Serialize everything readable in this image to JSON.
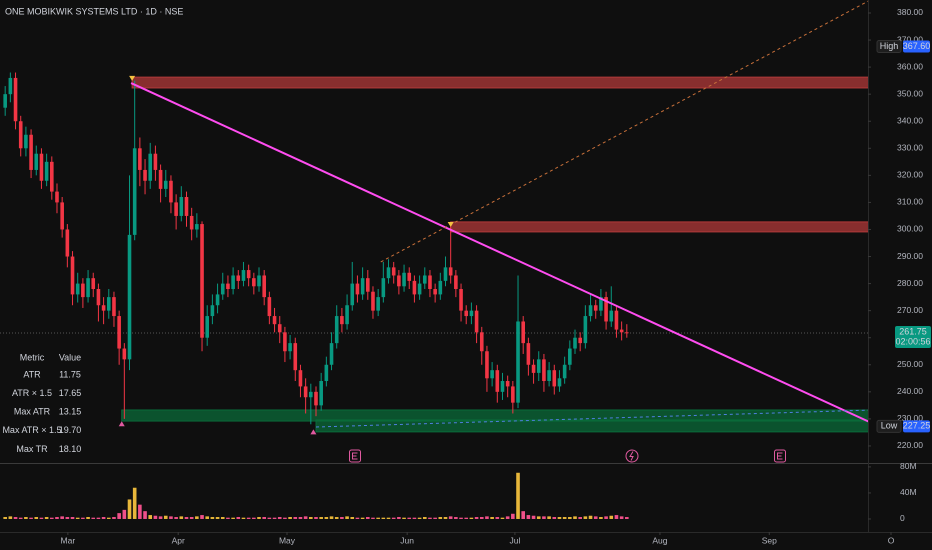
{
  "chart_data": {
    "type": "candlestick",
    "title": "ONE MOBIKWIK SYSTEMS LTD · 1D · NSE",
    "up_color": "#089981",
    "down_color": "#f23645",
    "volume_up_color": "#e8b73a",
    "volume_down_color": "#f0508a",
    "open": [
      345,
      350,
      356,
      340,
      330,
      335,
      322,
      328,
      318,
      325,
      314,
      310,
      300,
      290,
      276,
      280,
      275,
      282,
      278,
      272,
      270,
      275,
      268,
      256,
      252,
      298,
      330,
      322,
      318,
      328,
      322,
      315,
      318,
      310,
      305,
      312,
      305,
      300,
      302,
      260,
      268,
      272,
      276,
      280,
      278,
      283,
      281,
      285,
      282,
      279,
      283,
      275,
      268,
      265,
      262,
      255,
      258,
      248,
      242,
      238,
      240,
      235,
      244,
      250,
      258,
      268,
      265,
      272,
      280,
      276,
      282,
      277,
      270,
      275,
      282,
      286,
      283,
      279,
      284,
      281,
      276,
      280,
      283,
      278,
      276,
      281,
      286,
      283,
      278,
      270,
      268,
      270,
      262,
      255,
      245,
      248,
      240,
      244,
      242,
      236,
      266,
      258,
      250,
      247,
      252,
      244,
      248,
      242,
      245,
      250,
      256,
      260,
      258,
      268,
      272,
      270,
      275,
      266,
      270,
      263,
      262
    ],
    "high": [
      353,
      358,
      358,
      342,
      338,
      337,
      331,
      330,
      328,
      327,
      317,
      312,
      302,
      292,
      284,
      282,
      285,
      284,
      280,
      275,
      278,
      277,
      270,
      258,
      320,
      355,
      334,
      326,
      332,
      331,
      324,
      322,
      320,
      313,
      316,
      314,
      308,
      306,
      303,
      272,
      276,
      280,
      284,
      283,
      286,
      285,
      288,
      287,
      284,
      286,
      285,
      277,
      271,
      268,
      264,
      261,
      260,
      250,
      245,
      243,
      242,
      247,
      253,
      262,
      272,
      271,
      276,
      288,
      283,
      286,
      285,
      279,
      278,
      288,
      289,
      288,
      285,
      287,
      286,
      283,
      283,
      286,
      285,
      280,
      284,
      290,
      301,
      285,
      280,
      272,
      273,
      272,
      264,
      257,
      251,
      250,
      247,
      246,
      244,
      283,
      268,
      260,
      252,
      255,
      254,
      251,
      250,
      248,
      253,
      259,
      263,
      262,
      272,
      276,
      274,
      278,
      277,
      279,
      272,
      266,
      265
    ],
    "low": [
      342,
      347,
      337,
      327,
      327,
      319,
      320,
      315,
      316,
      311,
      306,
      297,
      286,
      272,
      273,
      271,
      273,
      275,
      266,
      265,
      267,
      264,
      250,
      230,
      248,
      296,
      316,
      313,
      315,
      318,
      310,
      312,
      306,
      300,
      303,
      301,
      296,
      297,
      255,
      257,
      265,
      269,
      274,
      275,
      276,
      278,
      279,
      279,
      276,
      277,
      272,
      265,
      262,
      258,
      251,
      252,
      244,
      238,
      232,
      228,
      231,
      233,
      242,
      248,
      256,
      262,
      263,
      270,
      273,
      274,
      274,
      267,
      268,
      273,
      280,
      280,
      276,
      277,
      278,
      273,
      274,
      278,
      275,
      273,
      274,
      279,
      280,
      275,
      266,
      265,
      265,
      258,
      250,
      240,
      242,
      236,
      237,
      238,
      232,
      234,
      254,
      246,
      243,
      244,
      240,
      242,
      239,
      240,
      243,
      248,
      254,
      255,
      256,
      266,
      267,
      268,
      263,
      264,
      260,
      259,
      260
    ],
    "close": [
      350,
      356,
      340,
      330,
      335,
      322,
      328,
      318,
      325,
      314,
      310,
      300,
      290,
      276,
      280,
      275,
      282,
      278,
      272,
      270,
      275,
      268,
      256,
      252,
      298,
      330,
      322,
      318,
      328,
      322,
      315,
      318,
      310,
      305,
      312,
      305,
      300,
      302,
      260,
      268,
      272,
      276,
      280,
      278,
      283,
      281,
      285,
      282,
      279,
      283,
      275,
      268,
      265,
      262,
      255,
      258,
      248,
      242,
      238,
      240,
      235,
      244,
      250,
      258,
      268,
      265,
      272,
      280,
      276,
      282,
      277,
      270,
      275,
      282,
      286,
      283,
      279,
      284,
      281,
      276,
      280,
      283,
      278,
      276,
      281,
      286,
      283,
      278,
      270,
      268,
      270,
      262,
      255,
      245,
      248,
      240,
      244,
      242,
      236,
      266,
      258,
      250,
      247,
      252,
      244,
      248,
      242,
      245,
      250,
      256,
      260,
      258,
      268,
      272,
      270,
      275,
      266,
      270,
      263,
      262,
      261.75
    ],
    "volume": [
      3,
      4,
      3,
      2,
      3,
      2,
      3,
      2,
      3,
      2,
      3,
      4,
      3,
      3,
      2,
      2,
      3,
      2,
      2,
      3,
      2,
      3,
      9,
      14,
      30,
      48,
      22,
      12,
      6,
      5,
      4,
      5,
      4,
      3,
      4,
      3,
      3,
      4,
      6,
      4,
      3,
      3,
      3,
      2,
      2,
      3,
      2,
      2,
      2,
      3,
      3,
      2,
      2,
      3,
      2,
      3,
      3,
      3,
      4,
      3,
      3,
      3,
      3,
      4,
      3,
      3,
      4,
      3,
      2,
      2,
      3,
      2,
      2,
      2,
      2,
      2,
      3,
      2,
      2,
      2,
      2,
      3,
      2,
      2,
      3,
      3,
      4,
      3,
      2,
      2,
      2,
      3,
      3,
      4,
      3,
      3,
      2,
      4,
      8,
      71,
      12,
      6,
      5,
      4,
      4,
      4,
      3,
      3,
      3,
      3,
      4,
      3,
      4,
      5,
      4,
      3,
      4,
      5,
      6,
      4,
      3
    ],
    "xlim": [
      -1,
      171
    ],
    "xticks": [
      {
        "value": 12.1,
        "label": "Mar"
      },
      {
        "value": 33.4,
        "label": "Apr"
      },
      {
        "value": 54.4,
        "label": "May"
      },
      {
        "value": 77.6,
        "label": "Jun"
      },
      {
        "value": 98.4,
        "label": "Jul"
      },
      {
        "value": 126.4,
        "label": "Aug"
      },
      {
        "value": 147.5,
        "label": "Sep"
      },
      {
        "value": 171,
        "label": "O"
      }
    ],
    "ylim": [
      213.7,
      384.8
    ],
    "yticks": [
      {
        "value": 220,
        "label": "220.00"
      },
      {
        "value": 230,
        "label": "230.00"
      },
      {
        "value": 240,
        "label": "240.00"
      },
      {
        "value": 250,
        "label": "250.00"
      },
      {
        "value": 260,
        "label": "260.00"
      },
      {
        "value": 270,
        "label": "270.00"
      },
      {
        "value": 280,
        "label": "280.00"
      },
      {
        "value": 290,
        "label": "290.00"
      },
      {
        "value": 300,
        "label": "300.00"
      },
      {
        "value": 310,
        "label": "310.00"
      },
      {
        "value": 320,
        "label": "320.00"
      },
      {
        "value": 330,
        "label": "330.00"
      },
      {
        "value": 340,
        "label": "340.00"
      },
      {
        "value": 350,
        "label": "350.00"
      },
      {
        "value": 360,
        "label": "360.00"
      },
      {
        "value": 370,
        "label": "370.00"
      },
      {
        "value": 380,
        "label": "380.00"
      }
    ],
    "vlim": [
      -20,
      86
    ],
    "vticks": [
      {
        "value": 80,
        "label": "80M"
      },
      {
        "value": 40,
        "label": "40M"
      },
      0
    ],
    "grid": false,
    "high_marker": {
      "name": "High",
      "value": 367.6,
      "label": "367.60",
      "color": "#2962ff"
    },
    "low_marker": {
      "name": "Low",
      "value": 227.25,
      "label": "227.25",
      "color": "#2962ff"
    },
    "last_price": {
      "value": 261.75,
      "label": "261.75",
      "countdown": "02:00:56",
      "color": "#089981"
    },
    "zones": [
      {
        "color": "#b23a3a",
        "x": [
          24.5,
          171
        ],
        "y": [
          352.3,
          356.3
        ]
      },
      {
        "color": "#b23a3a",
        "x": [
          86,
          171
        ],
        "y": [
          299.1,
          302.8
        ]
      },
      {
        "color": "#0b6b3a",
        "x": [
          22.5,
          171
        ],
        "y": [
          229.2,
          233.3
        ]
      },
      {
        "color": "#0b6b3a",
        "x": [
          60,
          171
        ],
        "y": [
          225.2,
          229.6
        ]
      }
    ],
    "lines": [
      {
        "color": "#ff4df0",
        "dash": false,
        "x": [
          24.3,
          168.5
        ],
        "y": [
          354.1,
          227.4
        ]
      },
      {
        "color": "#c8703a",
        "dash": true,
        "x": [
          72.5,
          167
        ],
        "y": [
          288,
          384.8
        ]
      },
      {
        "color": "#4f7fe0",
        "dash": true,
        "x": [
          60,
          171
        ],
        "y": [
          227,
          233.5
        ]
      }
    ],
    "pivots": [
      {
        "x": 24.5,
        "y": 356,
        "color": "#f5c242",
        "dir": "down"
      },
      {
        "x": 86,
        "y": 302,
        "color": "#f5c242",
        "dir": "down"
      },
      {
        "x": 22.5,
        "y": 228,
        "color": "#e05aa0",
        "dir": "up"
      },
      {
        "x": 59.5,
        "y": 225,
        "color": "#e05aa0",
        "dir": "up"
      }
    ],
    "table": {
      "header": [
        "Metric",
        "Value"
      ],
      "rows": [
        [
          "ATR",
          "11.75"
        ],
        [
          "ATR × 1.5",
          "17.65"
        ],
        [
          "Max ATR",
          "13.15"
        ],
        [
          "Max ATR × 1.5",
          "19.70"
        ],
        [
          "Max TR",
          "18.10"
        ]
      ]
    }
  }
}
